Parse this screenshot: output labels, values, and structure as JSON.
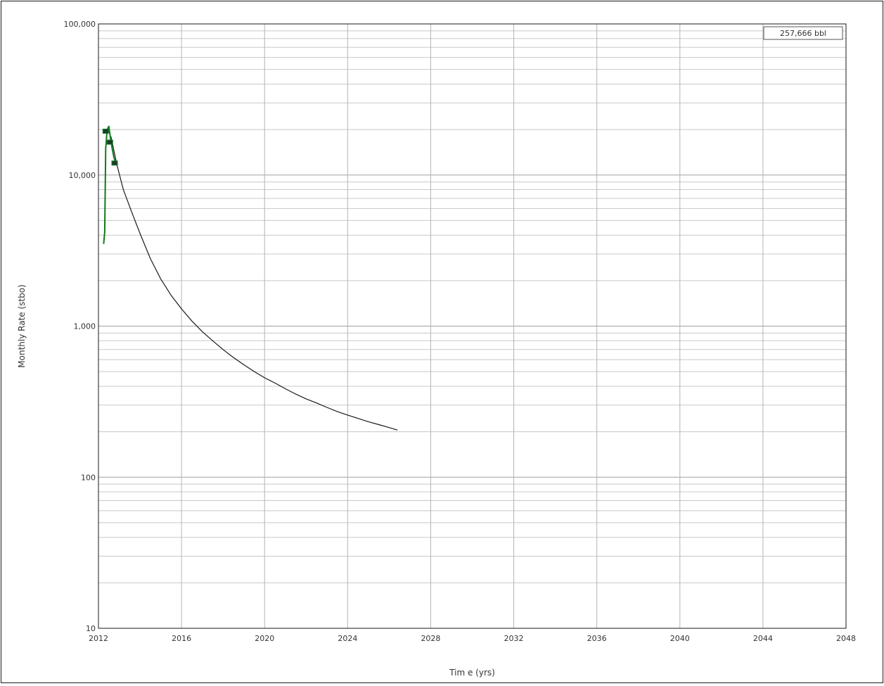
{
  "chart_data": {
    "type": "line",
    "title": "",
    "xlabel": "Tim e (yrs)",
    "ylabel": "Monthly Rate (stbo)",
    "x_ticks": [
      2012,
      2016,
      2020,
      2024,
      2028,
      2032,
      2036,
      2040,
      2044,
      2048
    ],
    "x_tick_labels": [
      "2012",
      "2016",
      "2020",
      "2024",
      "2028",
      "2032",
      "2036",
      "2040",
      "2044",
      "2048"
    ],
    "y_ticks": [
      10,
      100,
      1000,
      10000,
      100000
    ],
    "y_tick_labels": [
      "10",
      "100",
      "1,000",
      "10,000",
      "100,000"
    ],
    "xlim": [
      2012,
      2048
    ],
    "ylim": [
      10,
      100000
    ],
    "y_scale": "log",
    "grid": true,
    "legend_box": {
      "text": "257,666 bbl",
      "placement": "top-right"
    },
    "colors": {
      "forecast": "#1a1a1a",
      "history": "#0f7a1e",
      "history_marker": "#1f3a2a",
      "grid": "#c8c8c8",
      "axis": "#1a1a1a"
    },
    "series": [
      {
        "role": "forecast",
        "x": [
          2012.6,
          2012.9,
          2013.2,
          2013.6,
          2014.0,
          2014.5,
          2015.0,
          2015.5,
          2016.0,
          2016.5,
          2017.0,
          2017.5,
          2018.0,
          2018.5,
          2019.0,
          2019.5,
          2020.0,
          2020.5,
          2021.0,
          2021.5,
          2022.0,
          2022.5,
          2023.0,
          2023.5,
          2024.0,
          2024.5,
          2025.0,
          2025.5,
          2026.0,
          2026.4
        ],
        "y": [
          18000,
          11500,
          8000,
          5700,
          4100,
          2800,
          2050,
          1600,
          1300,
          1080,
          920,
          800,
          700,
          620,
          555,
          500,
          455,
          420,
          385,
          355,
          330,
          310,
          290,
          272,
          258,
          245,
          233,
          223,
          213,
          205
        ]
      },
      {
        "role": "history",
        "x": [
          2012.25,
          2012.3,
          2012.35,
          2012.42,
          2012.5,
          2012.58,
          2012.66,
          2012.75,
          2012.83
        ],
        "y": [
          3500,
          4200,
          15000,
          20000,
          21000,
          17500,
          15000,
          13000,
          12000
        ],
        "markers_x": [
          2012.35,
          2012.55,
          2012.78
        ],
        "markers_y": [
          19500,
          16500,
          12000
        ]
      }
    ]
  }
}
